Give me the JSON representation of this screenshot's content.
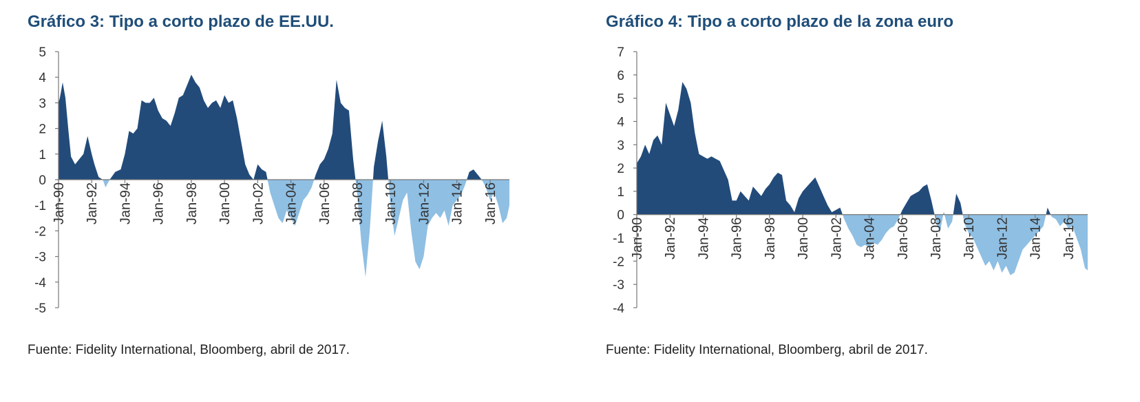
{
  "colors": {
    "positive": "#224b7a",
    "negative": "#8fbfe3",
    "title": "#1f4e79",
    "axis": "#777777"
  },
  "chart_data": [
    {
      "type": "area",
      "title": "Gráfico 3: Tipo a corto plazo de EE.UU.",
      "source": "Fuente: Fidelity International, Bloomberg, abril de 2017.",
      "xlabel": "",
      "ylabel": "",
      "ylim": [
        -5,
        5
      ],
      "yticks": [
        5,
        4,
        3,
        2,
        1,
        0,
        -1,
        -2,
        -3,
        -4,
        -5
      ],
      "xlim": [
        "1990-01",
        "2017-03"
      ],
      "xticks": [
        "Jan-90",
        "Jan-92",
        "Jan-94",
        "Jan-96",
        "Jan-98",
        "Jan-00",
        "Jan-02",
        "Jan-04",
        "Jan-06",
        "Jan-08",
        "Jan-10",
        "Jan-12",
        "Jan-14",
        "Jan-16"
      ],
      "grid": false,
      "legend": "none",
      "fill_rule": "positive values dark blue, negative values light blue",
      "series": [
        {
          "points": [
            [
              "1990-01",
              3.0
            ],
            [
              "1990-02",
              3.2
            ],
            [
              "1990-04",
              3.8
            ],
            [
              "1990-06",
              3.2
            ],
            [
              "1990-08",
              2.0
            ],
            [
              "1990-10",
              0.9
            ],
            [
              "1991-01",
              0.6
            ],
            [
              "1991-04",
              0.8
            ],
            [
              "1991-07",
              1.0
            ],
            [
              "1991-10",
              1.7
            ],
            [
              "1992-01",
              1.0
            ],
            [
              "1992-03",
              0.6
            ],
            [
              "1992-06",
              0.1
            ],
            [
              "1992-09",
              0.0
            ],
            [
              "1992-11",
              -0.3
            ],
            [
              "1993-02",
              0.0
            ],
            [
              "1993-06",
              0.3
            ],
            [
              "1993-10",
              0.4
            ],
            [
              "1994-01",
              1.0
            ],
            [
              "1994-04",
              1.9
            ],
            [
              "1994-07",
              1.8
            ],
            [
              "1994-10",
              2.0
            ],
            [
              "1995-01",
              3.1
            ],
            [
              "1995-04",
              3.0
            ],
            [
              "1995-07",
              3.0
            ],
            [
              "1995-10",
              3.2
            ],
            [
              "1996-01",
              2.7
            ],
            [
              "1996-04",
              2.4
            ],
            [
              "1996-07",
              2.3
            ],
            [
              "1996-10",
              2.1
            ],
            [
              "1997-01",
              2.6
            ],
            [
              "1997-04",
              3.2
            ],
            [
              "1997-07",
              3.3
            ],
            [
              "1997-10",
              3.7
            ],
            [
              "1998-01",
              4.1
            ],
            [
              "1998-04",
              3.8
            ],
            [
              "1998-07",
              3.6
            ],
            [
              "1998-10",
              3.1
            ],
            [
              "1999-01",
              2.8
            ],
            [
              "1999-04",
              3.0
            ],
            [
              "1999-07",
              3.1
            ],
            [
              "1999-10",
              2.8
            ],
            [
              "2000-01",
              3.3
            ],
            [
              "2000-04",
              3.0
            ],
            [
              "2000-07",
              3.1
            ],
            [
              "2000-10",
              2.4
            ],
            [
              "2001-01",
              1.5
            ],
            [
              "2001-04",
              0.6
            ],
            [
              "2001-07",
              0.2
            ],
            [
              "2001-10",
              0.0
            ],
            [
              "2002-01",
              0.6
            ],
            [
              "2002-04",
              0.4
            ],
            [
              "2002-07",
              0.3
            ],
            [
              "2002-10",
              -0.5
            ],
            [
              "2003-01",
              -1.0
            ],
            [
              "2003-04",
              -1.5
            ],
            [
              "2003-07",
              -1.7
            ],
            [
              "2003-10",
              -1.2
            ],
            [
              "2004-01",
              -1.5
            ],
            [
              "2004-04",
              -1.8
            ],
            [
              "2004-07",
              -1.3
            ],
            [
              "2004-10",
              -0.8
            ],
            [
              "2005-01",
              -0.6
            ],
            [
              "2005-04",
              -0.3
            ],
            [
              "2005-07",
              0.2
            ],
            [
              "2005-10",
              0.6
            ],
            [
              "2006-01",
              0.8
            ],
            [
              "2006-04",
              1.2
            ],
            [
              "2006-07",
              1.8
            ],
            [
              "2006-10",
              3.9
            ],
            [
              "2007-01",
              3.0
            ],
            [
              "2007-04",
              2.8
            ],
            [
              "2007-07",
              2.7
            ],
            [
              "2007-10",
              0.8
            ],
            [
              "2008-01",
              -0.6
            ],
            [
              "2008-04",
              -2.5
            ],
            [
              "2008-07",
              -3.8
            ],
            [
              "2008-10",
              -2.0
            ],
            [
              "2009-01",
              0.5
            ],
            [
              "2009-04",
              1.5
            ],
            [
              "2009-07",
              2.3
            ],
            [
              "2009-10",
              0.9
            ],
            [
              "2010-01",
              -1.0
            ],
            [
              "2010-04",
              -2.2
            ],
            [
              "2010-07",
              -1.5
            ],
            [
              "2010-10",
              -0.8
            ],
            [
              "2011-01",
              -0.5
            ],
            [
              "2011-04",
              -2.0
            ],
            [
              "2011-07",
              -3.2
            ],
            [
              "2011-10",
              -3.5
            ],
            [
              "2012-01",
              -3.0
            ],
            [
              "2012-04",
              -1.8
            ],
            [
              "2012-07",
              -1.5
            ],
            [
              "2012-10",
              -1.3
            ],
            [
              "2013-01",
              -1.5
            ],
            [
              "2013-04",
              -1.2
            ],
            [
              "2013-07",
              -1.8
            ],
            [
              "2013-10",
              -1.0
            ],
            [
              "2014-01",
              -0.8
            ],
            [
              "2014-04",
              -0.6
            ],
            [
              "2014-07",
              -0.2
            ],
            [
              "2014-10",
              0.3
            ],
            [
              "2015-01",
              0.4
            ],
            [
              "2015-04",
              0.2
            ],
            [
              "2015-07",
              0.0
            ],
            [
              "2015-10",
              -0.3
            ],
            [
              "2016-01",
              -0.8
            ],
            [
              "2016-04",
              -0.5
            ],
            [
              "2016-07",
              -1.0
            ],
            [
              "2016-10",
              -1.7
            ],
            [
              "2017-01",
              -1.5
            ],
            [
              "2017-03",
              -1.0
            ]
          ]
        }
      ]
    },
    {
      "type": "area",
      "title": "Gráfico 4: Tipo a corto plazo de la zona euro",
      "source": "Fuente: Fidelity International, Bloomberg, abril de 2017.",
      "xlabel": "",
      "ylabel": "",
      "ylim": [
        -4,
        7
      ],
      "yticks": [
        7,
        6,
        5,
        4,
        3,
        2,
        1,
        0,
        -1,
        -2,
        -3,
        -4
      ],
      "xlim": [
        "1990-01",
        "2017-03"
      ],
      "xticks": [
        "Jan-90",
        "Jan-92",
        "Jan-94",
        "Jan-96",
        "Jan-98",
        "Jan-00",
        "Jan-02",
        "Jan-04",
        "Jan-06",
        "Jan-08",
        "Jan-10",
        "Jan-12",
        "Jan-14",
        "Jan-16"
      ],
      "grid": false,
      "legend": "none",
      "fill_rule": "positive values dark blue, negative values light blue",
      "series": [
        {
          "points": [
            [
              "1990-01",
              2.2
            ],
            [
              "1990-04",
              2.5
            ],
            [
              "1990-07",
              3.0
            ],
            [
              "1990-10",
              2.6
            ],
            [
              "1991-01",
              3.2
            ],
            [
              "1991-04",
              3.4
            ],
            [
              "1991-07",
              3.0
            ],
            [
              "1991-10",
              4.8
            ],
            [
              "1992-01",
              4.3
            ],
            [
              "1992-04",
              3.8
            ],
            [
              "1992-07",
              4.5
            ],
            [
              "1992-10",
              5.7
            ],
            [
              "1993-01",
              5.4
            ],
            [
              "1993-04",
              4.8
            ],
            [
              "1993-07",
              3.5
            ],
            [
              "1993-10",
              2.6
            ],
            [
              "1994-01",
              2.5
            ],
            [
              "1994-04",
              2.4
            ],
            [
              "1994-07",
              2.5
            ],
            [
              "1994-10",
              2.4
            ],
            [
              "1995-01",
              2.3
            ],
            [
              "1995-04",
              1.9
            ],
            [
              "1995-07",
              1.5
            ],
            [
              "1995-10",
              0.6
            ],
            [
              "1996-01",
              0.6
            ],
            [
              "1996-04",
              1.0
            ],
            [
              "1996-07",
              0.8
            ],
            [
              "1996-10",
              0.6
            ],
            [
              "1997-01",
              1.2
            ],
            [
              "1997-04",
              1.0
            ],
            [
              "1997-07",
              0.8
            ],
            [
              "1997-10",
              1.1
            ],
            [
              "1998-01",
              1.3
            ],
            [
              "1998-04",
              1.6
            ],
            [
              "1998-07",
              1.8
            ],
            [
              "1998-10",
              1.7
            ],
            [
              "1999-01",
              0.6
            ],
            [
              "1999-04",
              0.4
            ],
            [
              "1999-07",
              0.1
            ],
            [
              "1999-10",
              0.7
            ],
            [
              "2000-01",
              1.0
            ],
            [
              "2000-04",
              1.2
            ],
            [
              "2000-07",
              1.4
            ],
            [
              "2000-10",
              1.6
            ],
            [
              "2001-01",
              1.2
            ],
            [
              "2001-04",
              0.8
            ],
            [
              "2001-07",
              0.4
            ],
            [
              "2001-10",
              0.1
            ],
            [
              "2002-01",
              0.2
            ],
            [
              "2002-04",
              0.3
            ],
            [
              "2002-07",
              -0.2
            ],
            [
              "2002-10",
              -0.6
            ],
            [
              "2003-01",
              -0.9
            ],
            [
              "2003-04",
              -1.3
            ],
            [
              "2003-07",
              -1.4
            ],
            [
              "2003-10",
              -1.3
            ],
            [
              "2004-01",
              -1.4
            ],
            [
              "2004-04",
              -1.2
            ],
            [
              "2004-07",
              -1.3
            ],
            [
              "2004-10",
              -1.1
            ],
            [
              "2005-01",
              -0.8
            ],
            [
              "2005-04",
              -0.6
            ],
            [
              "2005-07",
              -0.5
            ],
            [
              "2005-10",
              -0.2
            ],
            [
              "2006-01",
              0.2
            ],
            [
              "2006-04",
              0.5
            ],
            [
              "2006-07",
              0.8
            ],
            [
              "2006-10",
              0.9
            ],
            [
              "2007-01",
              1.0
            ],
            [
              "2007-04",
              1.2
            ],
            [
              "2007-07",
              1.3
            ],
            [
              "2007-10",
              0.6
            ],
            [
              "2008-01",
              -0.2
            ],
            [
              "2008-04",
              -0.8
            ],
            [
              "2008-07",
              0.1
            ],
            [
              "2008-10",
              -0.6
            ],
            [
              "2009-01",
              -0.3
            ],
            [
              "2009-04",
              0.9
            ],
            [
              "2009-07",
              0.5
            ],
            [
              "2009-10",
              -0.4
            ],
            [
              "2010-01",
              -0.8
            ],
            [
              "2010-04",
              -1.0
            ],
            [
              "2010-07",
              -1.4
            ],
            [
              "2010-10",
              -1.8
            ],
            [
              "2011-01",
              -2.2
            ],
            [
              "2011-04",
              -2.0
            ],
            [
              "2011-07",
              -2.4
            ],
            [
              "2011-10",
              -2.0
            ],
            [
              "2012-01",
              -2.5
            ],
            [
              "2012-04",
              -2.2
            ],
            [
              "2012-07",
              -2.6
            ],
            [
              "2012-10",
              -2.5
            ],
            [
              "2013-01",
              -2.0
            ],
            [
              "2013-04",
              -1.5
            ],
            [
              "2013-07",
              -1.3
            ],
            [
              "2013-10",
              -1.1
            ],
            [
              "2014-01",
              -0.9
            ],
            [
              "2014-04",
              -0.7
            ],
            [
              "2014-07",
              -0.5
            ],
            [
              "2014-10",
              0.3
            ],
            [
              "2015-01",
              -0.1
            ],
            [
              "2015-04",
              -0.2
            ],
            [
              "2015-07",
              -0.5
            ],
            [
              "2015-10",
              -0.3
            ],
            [
              "2016-01",
              -0.6
            ],
            [
              "2016-04",
              -0.5
            ],
            [
              "2016-07",
              -1.0
            ],
            [
              "2016-10",
              -1.5
            ],
            [
              "2017-01",
              -2.3
            ],
            [
              "2017-03",
              -2.4
            ]
          ]
        }
      ]
    }
  ]
}
